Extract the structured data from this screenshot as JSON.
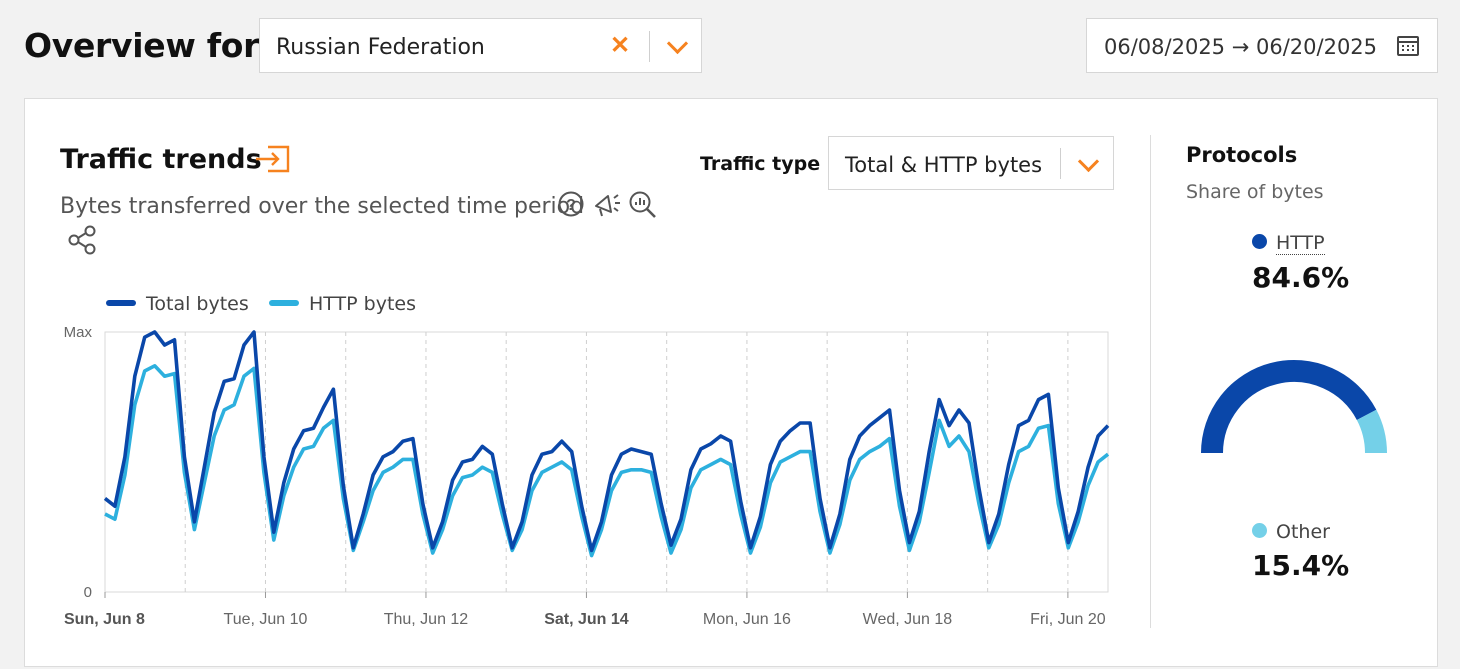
{
  "header": {
    "title": "Overview for",
    "location": "Russian Federation",
    "date_range": "06/08/2025 → 06/20/2025"
  },
  "traffic": {
    "title": "Traffic trends",
    "subtitle": "Bytes transferred over the selected time period",
    "traffic_type_label": "Traffic type",
    "traffic_type_value": "Total & HTTP bytes"
  },
  "protocols": {
    "title": "Protocols",
    "subtitle": "Share of bytes",
    "items": [
      {
        "name": "HTTP",
        "value": "84.6%",
        "share": 84.6,
        "color": "#0a47a9"
      },
      {
        "name": "Other",
        "value": "15.4%",
        "share": 15.4,
        "color": "#74d0e8"
      }
    ]
  },
  "chart_data": {
    "type": "line",
    "ylim": [
      0,
      1
    ],
    "y_tick_labels": [
      "0",
      "Max"
    ],
    "x_tick_labels": [
      {
        "label": "Sun, Jun 8",
        "bold": true
      },
      {
        "label": "Tue, Jun 10",
        "bold": false
      },
      {
        "label": "Thu, Jun 12",
        "bold": false
      },
      {
        "label": "Sat, Jun 14",
        "bold": true
      },
      {
        "label": "Mon, Jun 16",
        "bold": false
      },
      {
        "label": "Wed, Jun 18",
        "bold": false
      },
      {
        "label": "Fri, Jun 20",
        "bold": false
      }
    ],
    "x_day_count": 12.5,
    "series_note": "values sampled every 2 hours from Sun Jun 8 00:00, normalized to Max = 1",
    "series": [
      {
        "name": "Total bytes",
        "color": "#0a47a9",
        "values": [
          0.36,
          0.33,
          0.52,
          0.83,
          0.98,
          1.0,
          0.95,
          0.97,
          0.52,
          0.27,
          0.48,
          0.69,
          0.81,
          0.82,
          0.95,
          1.0,
          0.52,
          0.23,
          0.42,
          0.55,
          0.62,
          0.63,
          0.71,
          0.78,
          0.41,
          0.17,
          0.3,
          0.45,
          0.52,
          0.54,
          0.58,
          0.59,
          0.34,
          0.17,
          0.27,
          0.43,
          0.5,
          0.51,
          0.56,
          0.53,
          0.34,
          0.17,
          0.27,
          0.45,
          0.53,
          0.54,
          0.58,
          0.54,
          0.33,
          0.16,
          0.27,
          0.45,
          0.53,
          0.55,
          0.54,
          0.53,
          0.34,
          0.18,
          0.28,
          0.47,
          0.55,
          0.57,
          0.6,
          0.58,
          0.35,
          0.17,
          0.29,
          0.49,
          0.58,
          0.62,
          0.65,
          0.65,
          0.36,
          0.17,
          0.3,
          0.51,
          0.6,
          0.64,
          0.67,
          0.7,
          0.39,
          0.19,
          0.31,
          0.54,
          0.74,
          0.64,
          0.7,
          0.65,
          0.4,
          0.19,
          0.3,
          0.49,
          0.64,
          0.66,
          0.74,
          0.76,
          0.4,
          0.19,
          0.31,
          0.48,
          0.6,
          0.64
        ]
      },
      {
        "name": "HTTP bytes",
        "color": "#2db0de",
        "values": [
          0.3,
          0.28,
          0.45,
          0.72,
          0.85,
          0.87,
          0.83,
          0.84,
          0.46,
          0.24,
          0.42,
          0.6,
          0.7,
          0.72,
          0.83,
          0.86,
          0.46,
          0.2,
          0.37,
          0.48,
          0.55,
          0.56,
          0.63,
          0.66,
          0.36,
          0.16,
          0.27,
          0.39,
          0.46,
          0.48,
          0.51,
          0.51,
          0.3,
          0.15,
          0.24,
          0.37,
          0.44,
          0.45,
          0.48,
          0.46,
          0.3,
          0.16,
          0.24,
          0.39,
          0.46,
          0.48,
          0.5,
          0.47,
          0.29,
          0.14,
          0.24,
          0.39,
          0.46,
          0.47,
          0.47,
          0.46,
          0.29,
          0.15,
          0.24,
          0.4,
          0.47,
          0.49,
          0.51,
          0.49,
          0.3,
          0.15,
          0.25,
          0.42,
          0.5,
          0.52,
          0.54,
          0.54,
          0.31,
          0.15,
          0.26,
          0.43,
          0.51,
          0.54,
          0.56,
          0.59,
          0.33,
          0.16,
          0.27,
          0.46,
          0.66,
          0.56,
          0.6,
          0.54,
          0.34,
          0.17,
          0.26,
          0.42,
          0.54,
          0.56,
          0.63,
          0.64,
          0.34,
          0.17,
          0.27,
          0.41,
          0.5,
          0.53
        ]
      }
    ]
  }
}
